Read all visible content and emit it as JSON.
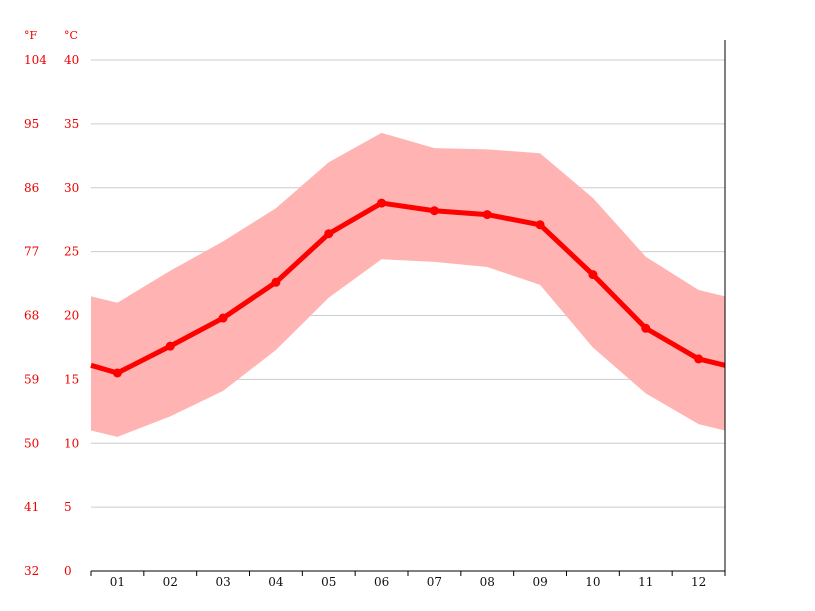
{
  "chart_data": {
    "type": "line",
    "units": {
      "fahrenheit": "°F",
      "celsius": "°C"
    },
    "categories": [
      "01",
      "02",
      "03",
      "04",
      "05",
      "06",
      "07",
      "08",
      "09",
      "10",
      "11",
      "12"
    ],
    "series": [
      {
        "values": [
          15.5,
          17.6,
          19.8,
          22.6,
          26.4,
          28.8,
          28.2,
          27.9,
          27.1,
          23.2,
          19.0,
          16.6
        ]
      }
    ],
    "range_band": {
      "max": [
        21.0,
        23.5,
        25.8,
        28.4,
        32.0,
        34.3,
        33.1,
        33.0,
        32.7,
        29.2,
        24.6,
        22.0
      ],
      "min": [
        10.5,
        12.1,
        14.1,
        17.3,
        21.4,
        24.4,
        24.2,
        23.8,
        22.4,
        17.5,
        13.9,
        11.5
      ]
    },
    "edge_values": {
      "line_start": 16.1,
      "line_end": 16.1,
      "band_start_max": 21.5,
      "band_start_min": 11.0,
      "band_end_max": 21.5,
      "band_end_min": 11.0
    },
    "y_ticks_c": [
      "0",
      "5",
      "10",
      "15",
      "20",
      "25",
      "30",
      "35",
      "40"
    ],
    "y_ticks_f": [
      "32",
      "41",
      "50",
      "59",
      "68",
      "77",
      "86",
      "95",
      "104"
    ],
    "ylim": [
      0,
      40
    ],
    "grid": true,
    "colors": {
      "line": "#ff0000",
      "band": "#ffb3b3",
      "grid": "#cccccc",
      "axis_text": "#ee0000"
    }
  }
}
